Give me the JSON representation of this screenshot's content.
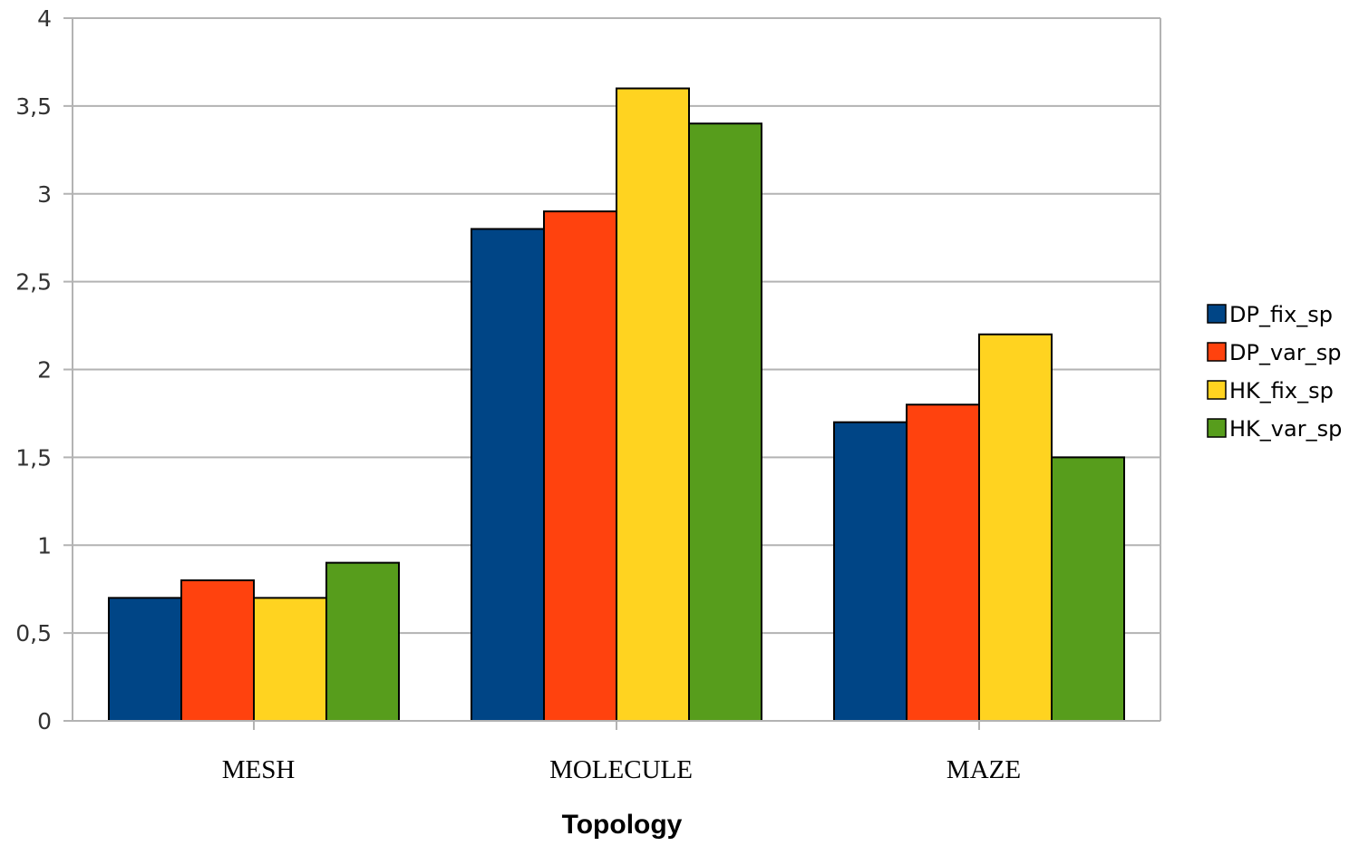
{
  "chart_data": {
    "type": "bar",
    "title": "",
    "xlabel": "Topology",
    "ylabel": "",
    "categories": [
      "MESH",
      "MOLECULE",
      "MAZE"
    ],
    "series": [
      {
        "name": "DP_fix_sp",
        "color": "#004586",
        "values": [
          0.7,
          2.8,
          1.7
        ]
      },
      {
        "name": "DP_var_sp",
        "color": "#ff420e",
        "values": [
          0.8,
          2.9,
          1.8
        ]
      },
      {
        "name": "HK_fix_sp",
        "color": "#ffd320",
        "values": [
          0.7,
          3.6,
          2.2
        ]
      },
      {
        "name": "HK_var_sp",
        "color": "#579d1c",
        "values": [
          0.9,
          3.4,
          1.5
        ]
      }
    ],
    "ylim": [
      0,
      4
    ],
    "yticks": [
      {
        "value": 0,
        "label": "0"
      },
      {
        "value": 0.5,
        "label": "0,5"
      },
      {
        "value": 1,
        "label": "1"
      },
      {
        "value": 1.5,
        "label": "1,5"
      },
      {
        "value": 2,
        "label": "2"
      },
      {
        "value": 2.5,
        "label": "2,5"
      },
      {
        "value": 3,
        "label": "3"
      },
      {
        "value": 3.5,
        "label": "3,5"
      },
      {
        "value": 4,
        "label": "4"
      }
    ],
    "grid": true,
    "legend_position": "right"
  }
}
